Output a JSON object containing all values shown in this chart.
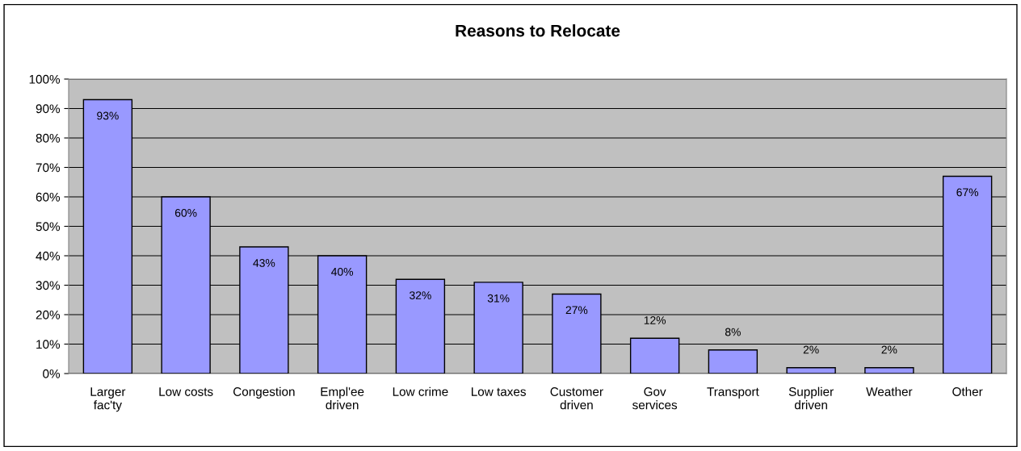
{
  "chart_data": {
    "type": "bar",
    "title": "Reasons to Relocate",
    "categories": [
      "Larger\nfac'ty",
      "Low costs",
      "Congestion",
      "Empl'ee\ndriven",
      "Low crime",
      "Low taxes",
      "Customer\ndriven",
      "Gov\nservices",
      "Transport",
      "Supplier\ndriven",
      "Weather",
      "Other"
    ],
    "values": [
      93,
      60,
      43,
      40,
      32,
      31,
      27,
      12,
      8,
      2,
      2,
      67
    ],
    "value_labels": [
      "93%",
      "60%",
      "43%",
      "40%",
      "32%",
      "31%",
      "27%",
      "12%",
      "8%",
      "2%",
      "2%",
      "67%"
    ],
    "color": "#9999ff",
    "ylim": [
      0,
      100
    ],
    "yticks": [
      {
        "value": 0,
        "label": "0%"
      },
      {
        "value": 10,
        "label": "10%"
      },
      {
        "value": 20,
        "label": "20%"
      },
      {
        "value": 30,
        "label": "30%"
      },
      {
        "value": 40,
        "label": "40%"
      },
      {
        "value": 50,
        "label": "50%"
      },
      {
        "value": 60,
        "label": "60%"
      },
      {
        "value": 70,
        "label": "70%"
      },
      {
        "value": 80,
        "label": "80%"
      },
      {
        "value": 90,
        "label": "90%"
      },
      {
        "value": 100,
        "label": "100%"
      }
    ],
    "grid": "y",
    "legend": false
  }
}
